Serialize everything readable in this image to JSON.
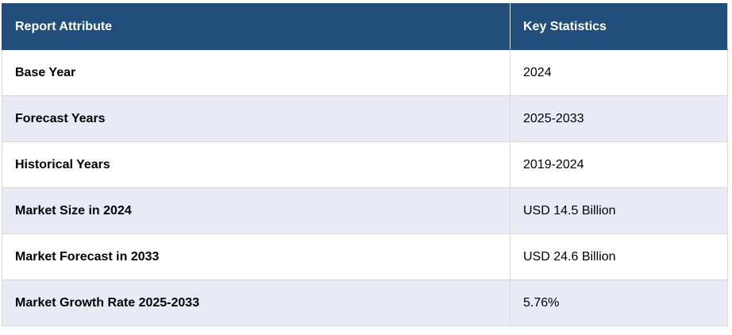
{
  "table": {
    "header": [
      "Report Attribute",
      "Key Statistics"
    ],
    "rows": [
      [
        "Base Year",
        "2024"
      ],
      [
        "Forecast Years",
        "2025-2033"
      ],
      [
        "Historical Years",
        "2019-2024"
      ],
      [
        "Market Size in 2024",
        "USD 14.5 Billion"
      ],
      [
        "Market Forecast in 2033",
        "USD 24.6 Billion"
      ],
      [
        "Market Growth Rate 2025-2033",
        "5.76%"
      ]
    ]
  }
}
